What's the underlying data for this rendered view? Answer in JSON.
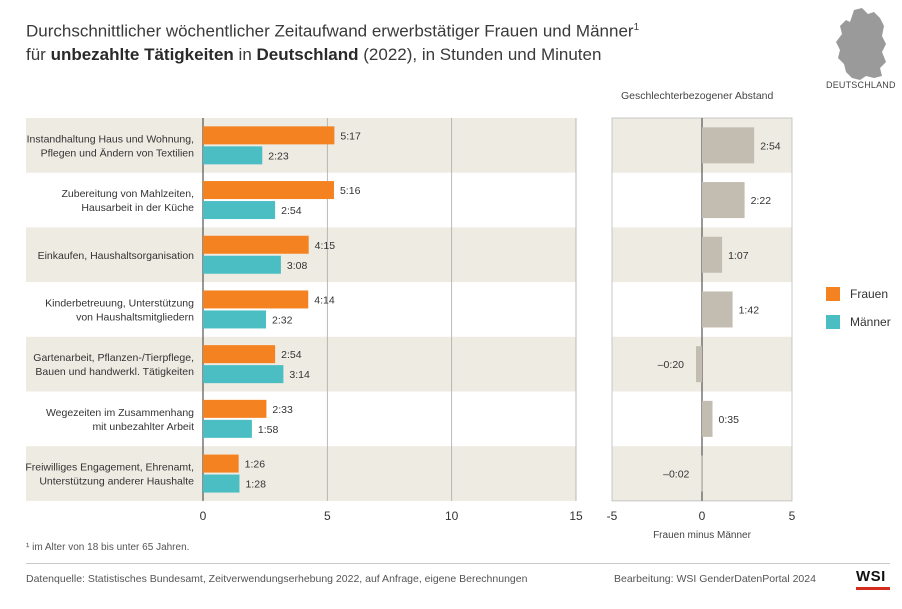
{
  "title": {
    "line1": "Durchschnittlicher wöchentlicher Zeitaufwand erwerbstätiger Frauen und Männer",
    "line1_sup": "1",
    "line2_pre": "für ",
    "line2_bold1": "unbezahlte Tätigkeiten",
    "line2_mid": " in ",
    "line2_bold2": "Deutschland",
    "line2_post": " (2022), in Stunden und Minuten"
  },
  "map_label": "DEUTSCHLAND",
  "gap_title": "Geschlechterbezogener Abstand",
  "gap_xlabel": "Frauen minus Männer",
  "footnote": "¹ im Alter von 18 bis unter 65 Jahren.",
  "source": "Datenquelle: Statistisches Bundesamt, Zeitverwendungserhebung 2022, auf Anfrage, eigene Berechnungen",
  "credit": "Bearbeitung: WSI GenderDatenPortal 2024",
  "logo": "WSI",
  "colors": {
    "frauen": "#f58220",
    "maenner": "#4bbec3",
    "gap": "#c2bdb0",
    "band": "#eeebe3",
    "logo_bar": "#d42c1e"
  },
  "chart_data": [
    {
      "type": "bar",
      "orientation": "horizontal",
      "categories": [
        [
          "Instandhaltung Haus und Wohnung,",
          "Pflegen und Ändern von Textilien"
        ],
        [
          "Zubereitung von Mahlzeiten,",
          "Hausarbeit in der Küche"
        ],
        [
          "Einkaufen, Haushaltsorganisation"
        ],
        [
          "Kinderbetreuung, Unterstützung",
          "von Haushaltsmitgliedern"
        ],
        [
          "Gartenarbeit, Pflanzen-/Tierpflege,",
          "Bauen und handwerkl. Tätigkeiten"
        ],
        [
          "Wegezeiten im Zusammenhang",
          "mit unbezahlter Arbeit"
        ],
        [
          "Freiwilliges Engagement, Ehrenamt,",
          "Unterstützung anderer Haushalte"
        ]
      ],
      "series": [
        {
          "name": "Frauen",
          "values": [
            5.283,
            5.267,
            4.25,
            4.233,
            2.9,
            2.55,
            1.433
          ],
          "labels": [
            "5:17",
            "5:16",
            "4:15",
            "4:14",
            "2:54",
            "2:33",
            "1:26"
          ]
        },
        {
          "name": "Männer",
          "values": [
            2.383,
            2.9,
            3.133,
            2.533,
            3.233,
            1.967,
            1.467
          ],
          "labels": [
            "2:23",
            "2:54",
            "3:08",
            "2:32",
            "3:14",
            "1:58",
            "1:28"
          ]
        }
      ],
      "xlim": [
        0,
        15
      ],
      "xticks": [
        "0",
        "5",
        "10",
        "15"
      ],
      "grid": true
    },
    {
      "type": "bar",
      "orientation": "horizontal",
      "title": "Geschlechterbezogener Abstand",
      "xlabel": "Frauen minus Männer",
      "values": [
        2.9,
        2.367,
        1.117,
        1.7,
        -0.333,
        0.583,
        -0.033
      ],
      "labels": [
        "2:54",
        "2:22",
        "1:07",
        "1:42",
        "–0:20",
        "0:35",
        "–0:02"
      ],
      "xlim": [
        -5,
        5
      ],
      "xticks": [
        "-5",
        "0",
        "5"
      ]
    }
  ],
  "legend": [
    {
      "name": "Frauen",
      "color": "#f58220"
    },
    {
      "name": "Männer",
      "color": "#4bbec3"
    }
  ]
}
